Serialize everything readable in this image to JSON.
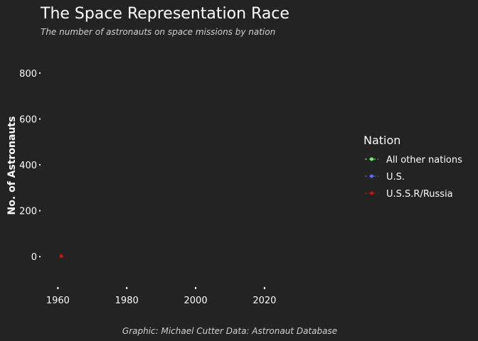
{
  "chart_data": {
    "type": "scatter",
    "title": "The Space Representation Race",
    "subtitle": "The number of astronauts on space missions by nation",
    "xlabel": "",
    "ylabel": "No. of Astronauts",
    "caption": "Graphic: Michael Cutter Data: Astronaut Database",
    "xlim": [
      1956,
      2032
    ],
    "ylim": [
      -120,
      880
    ],
    "x_ticks": [
      1960,
      1980,
      2000,
      2020
    ],
    "y_ticks": [
      0,
      200,
      400,
      600,
      800
    ],
    "grid": false,
    "legend_position": "right",
    "legend_title": "Nation",
    "series": [
      {
        "name": "All other nations",
        "color": "#66ff66",
        "points": []
      },
      {
        "name": "U.S.",
        "color": "#6666ff",
        "points": []
      },
      {
        "name": "U.S.S.R/Russia",
        "color": "#cc1111",
        "points": [
          {
            "x": 1961,
            "y": 2
          }
        ]
      }
    ]
  }
}
